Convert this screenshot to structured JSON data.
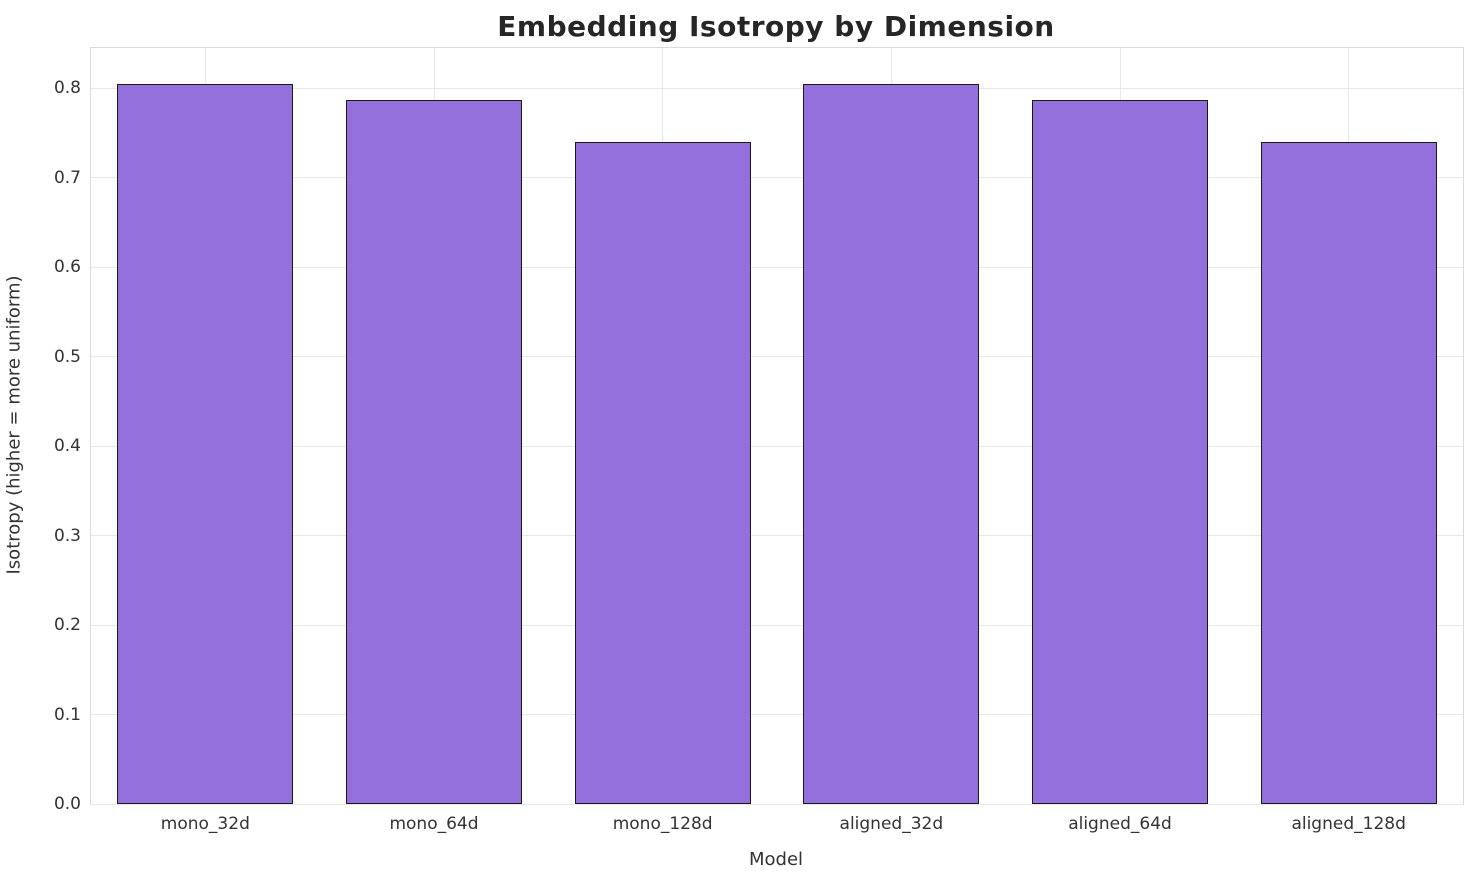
{
  "chart_data": {
    "type": "bar",
    "title": "Embedding Isotropy by Dimension",
    "xlabel": "Model",
    "ylabel": "Isotropy (higher = more uniform)",
    "categories": [
      "mono_32d",
      "mono_64d",
      "mono_128d",
      "aligned_32d",
      "aligned_64d",
      "aligned_128d"
    ],
    "values": [
      0.805,
      0.787,
      0.74,
      0.805,
      0.787,
      0.74
    ],
    "ylim": [
      0,
      0.845
    ],
    "yticks": [
      0.0,
      0.1,
      0.2,
      0.3,
      0.4,
      0.5,
      0.6,
      0.7,
      0.8
    ],
    "ytick_format_decimals": 1,
    "grid": true,
    "legend": "none",
    "bar_color": "#9370DB",
    "bar_edge_color": "#1a1a1a",
    "bar_width_fraction": 0.77
  }
}
